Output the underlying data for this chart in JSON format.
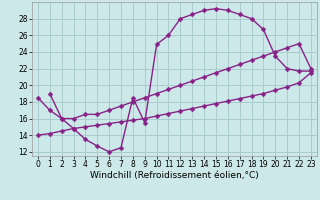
{
  "bg_color": "#cce8e8",
  "grid_color": "#aacccc",
  "line_color": "#882288",
  "markersize": 2.5,
  "linewidth": 1.0,
  "xlabel": "Windchill (Refroidissement éolien,°C)",
  "xlabel_fontsize": 6.5,
  "tick_fontsize": 5.5,
  "xlim": [
    -0.5,
    23.5
  ],
  "ylim": [
    11.5,
    30.0
  ],
  "yticks": [
    12,
    14,
    16,
    18,
    20,
    22,
    24,
    26,
    28
  ],
  "xticks": [
    0,
    1,
    2,
    3,
    4,
    5,
    6,
    7,
    8,
    9,
    10,
    11,
    12,
    13,
    14,
    15,
    16,
    17,
    18,
    19,
    20,
    21,
    22,
    23
  ],
  "curve1_x": [
    1,
    2,
    3,
    4,
    5,
    6,
    7,
    8,
    9,
    10,
    11,
    12,
    13,
    14,
    15,
    16,
    17,
    18,
    19,
    20,
    21,
    22,
    23
  ],
  "curve1_y": [
    19.0,
    16.0,
    14.8,
    13.5,
    12.7,
    12.0,
    12.5,
    18.5,
    15.5,
    24.9,
    26.0,
    28.0,
    28.5,
    29.0,
    29.2,
    29.0,
    28.5,
    28.0,
    26.7,
    23.5,
    22.0,
    21.7,
    21.7
  ],
  "curve2_x": [
    0,
    1,
    2,
    3,
    4,
    5,
    6,
    7,
    8,
    9,
    10,
    11,
    12,
    13,
    14,
    15,
    16,
    17,
    18,
    19,
    20,
    21,
    22,
    23
  ],
  "curve2_y": [
    18.5,
    17.0,
    16.0,
    16.0,
    16.5,
    16.5,
    17.0,
    17.5,
    18.0,
    18.5,
    19.0,
    19.5,
    20.0,
    20.5,
    21.0,
    21.5,
    22.0,
    22.5,
    23.0,
    23.5,
    24.0,
    24.5,
    25.0,
    22.0
  ],
  "curve3_x": [
    0,
    1,
    2,
    3,
    4,
    5,
    6,
    7,
    8,
    9,
    10,
    11,
    12,
    13,
    14,
    15,
    16,
    17,
    18,
    19,
    20,
    21,
    22,
    23
  ],
  "curve3_y": [
    14.0,
    14.2,
    14.5,
    14.8,
    15.0,
    15.2,
    15.4,
    15.6,
    15.8,
    16.0,
    16.3,
    16.6,
    16.9,
    17.2,
    17.5,
    17.8,
    18.1,
    18.4,
    18.7,
    19.0,
    19.4,
    19.8,
    20.3,
    21.5
  ]
}
